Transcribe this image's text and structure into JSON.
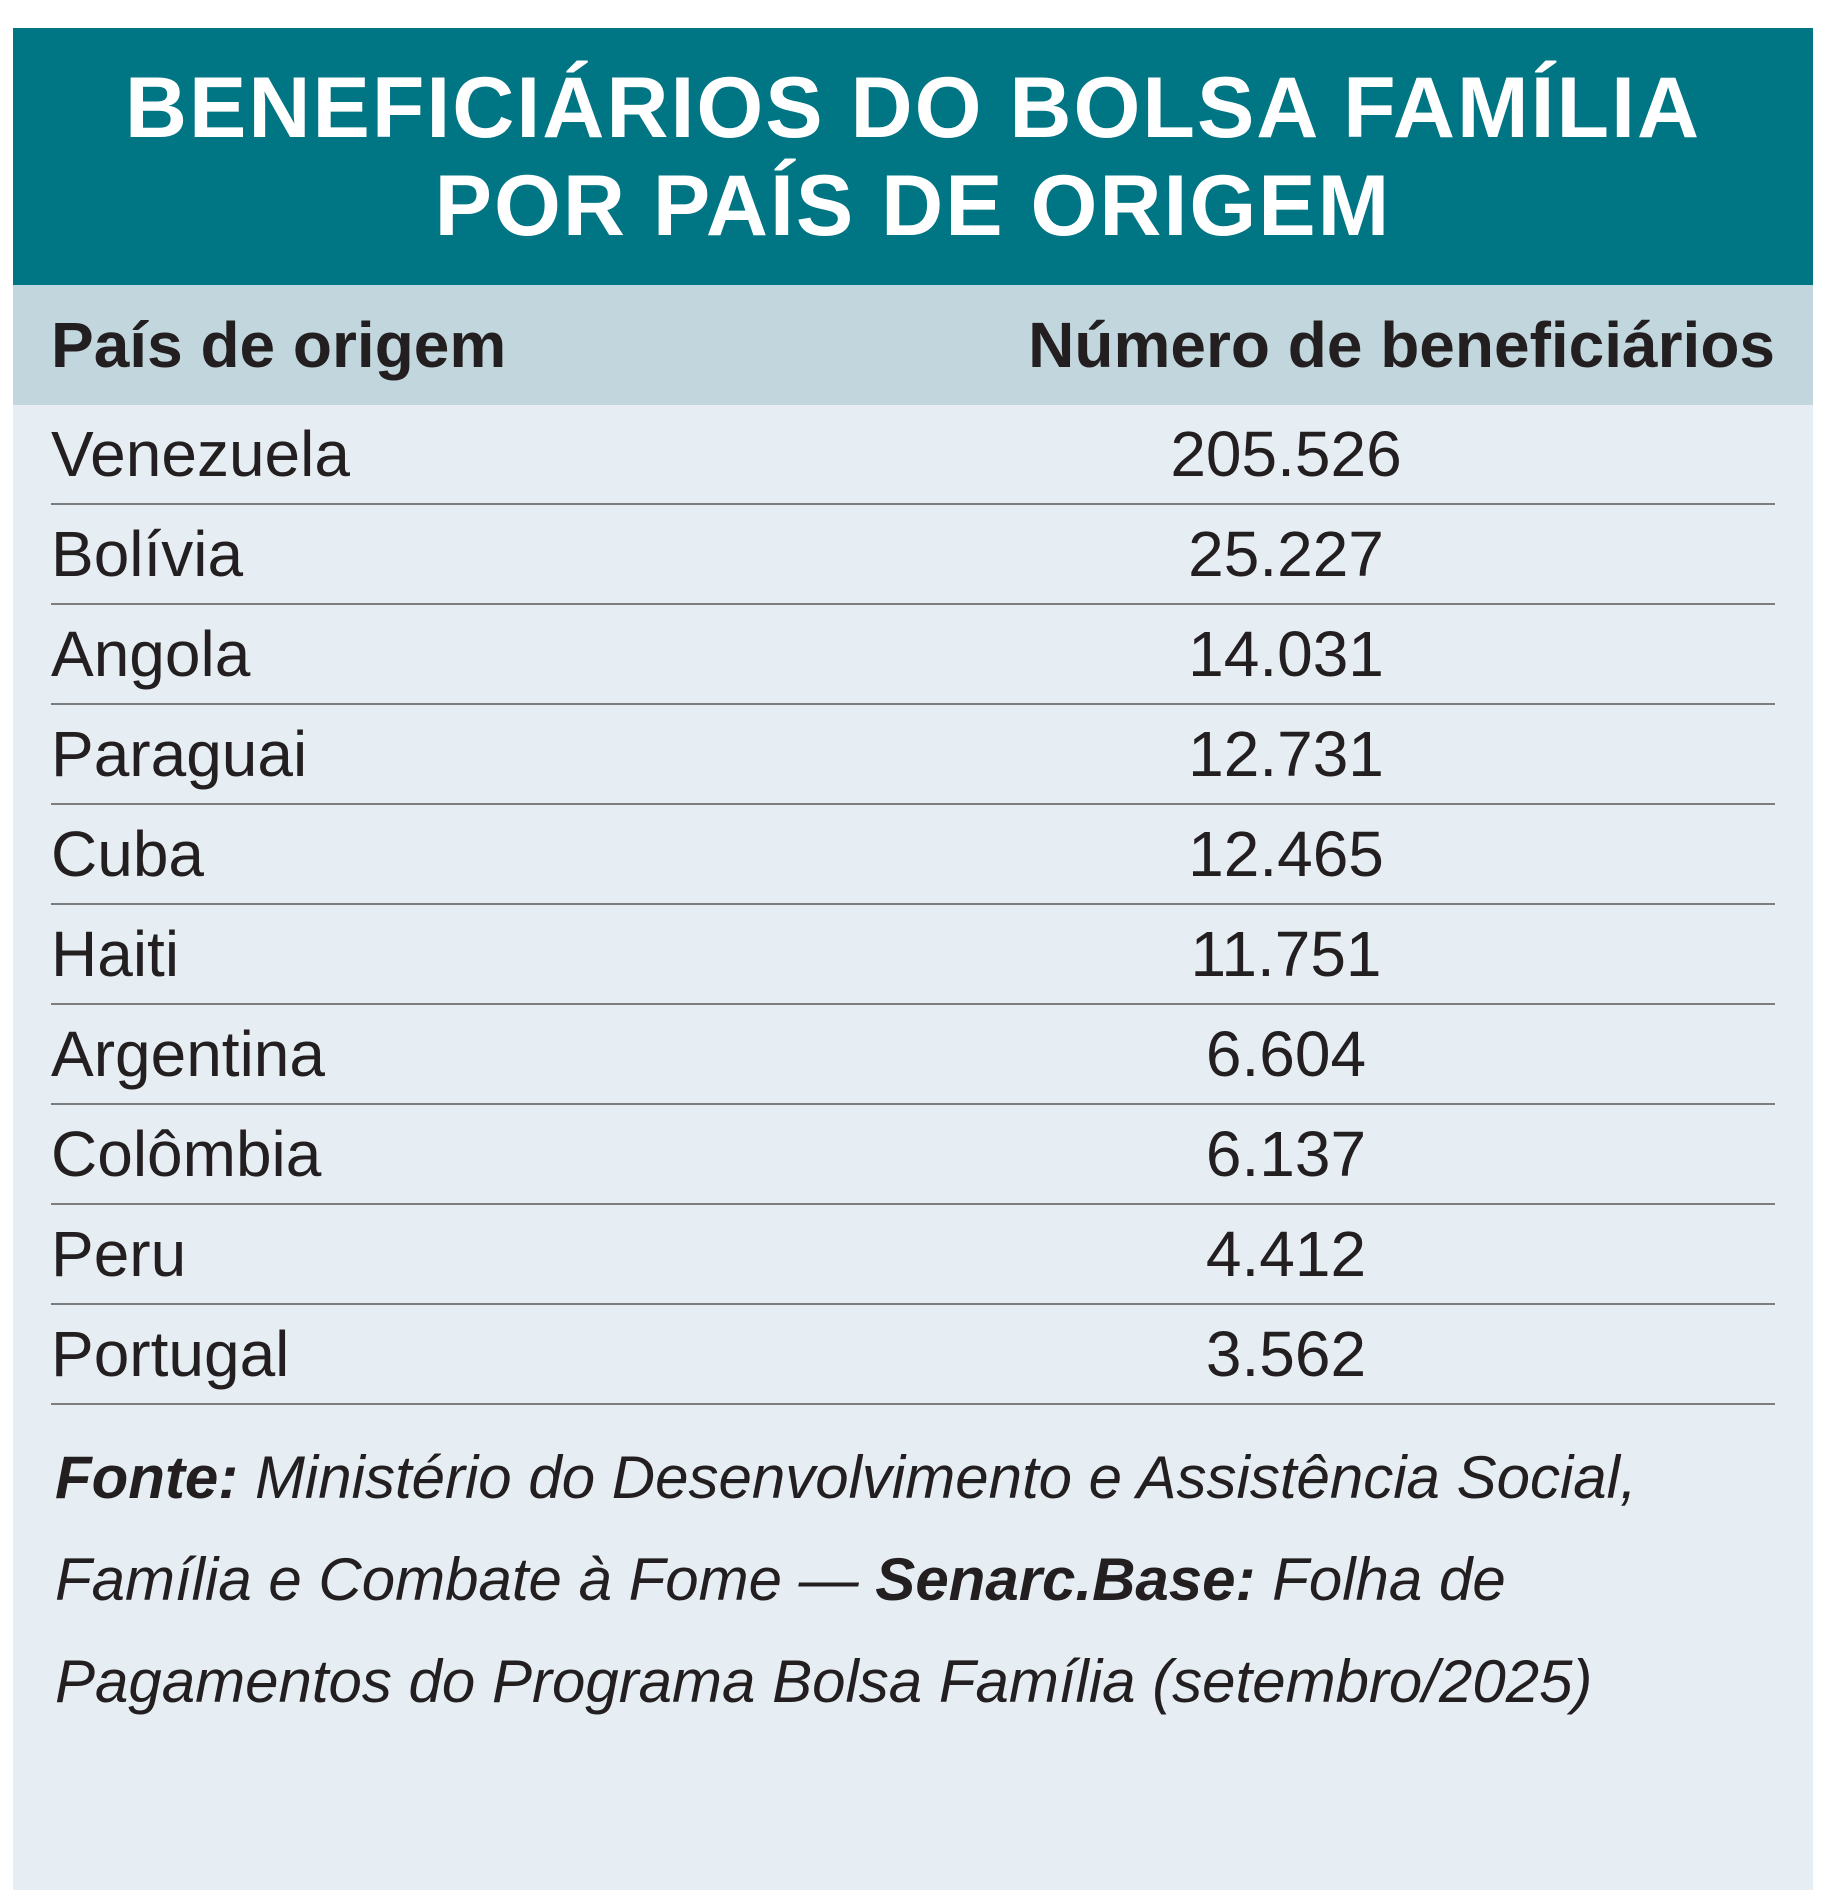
{
  "title": "BENEFICIÁRIOS DO BOLSA FAMÍLIA POR PAÍS DE ORIGEM",
  "colors": {
    "header": "#007584",
    "subheader": "#c2d6dd",
    "body": "#e6eef3",
    "text": "#231f20"
  },
  "table": {
    "headers": [
      "País de origem",
      "Número de beneficiários"
    ],
    "rows": [
      [
        "Venezuela",
        "205.526"
      ],
      [
        "Bolívia",
        "25.227"
      ],
      [
        "Angola",
        "14.031"
      ],
      [
        "Paraguai",
        "12.731"
      ],
      [
        "Cuba",
        "12.465"
      ],
      [
        "Haiti",
        "11.751"
      ],
      [
        "Argentina",
        "6.604"
      ],
      [
        "Colômbia",
        "6.137"
      ],
      [
        "Peru",
        "4.412"
      ],
      [
        "Portugal",
        "3.562"
      ]
    ]
  },
  "source": {
    "fonte_label": "Fonte:",
    "fonte_text": " Ministério do Desenvolvimento e Assistência Social, Família e Combate à Fome — ",
    "base_label": "Senarc.Base:",
    "base_text": " Folha de Pagamentos do Programa Bolsa Família (setembro/2025)"
  }
}
